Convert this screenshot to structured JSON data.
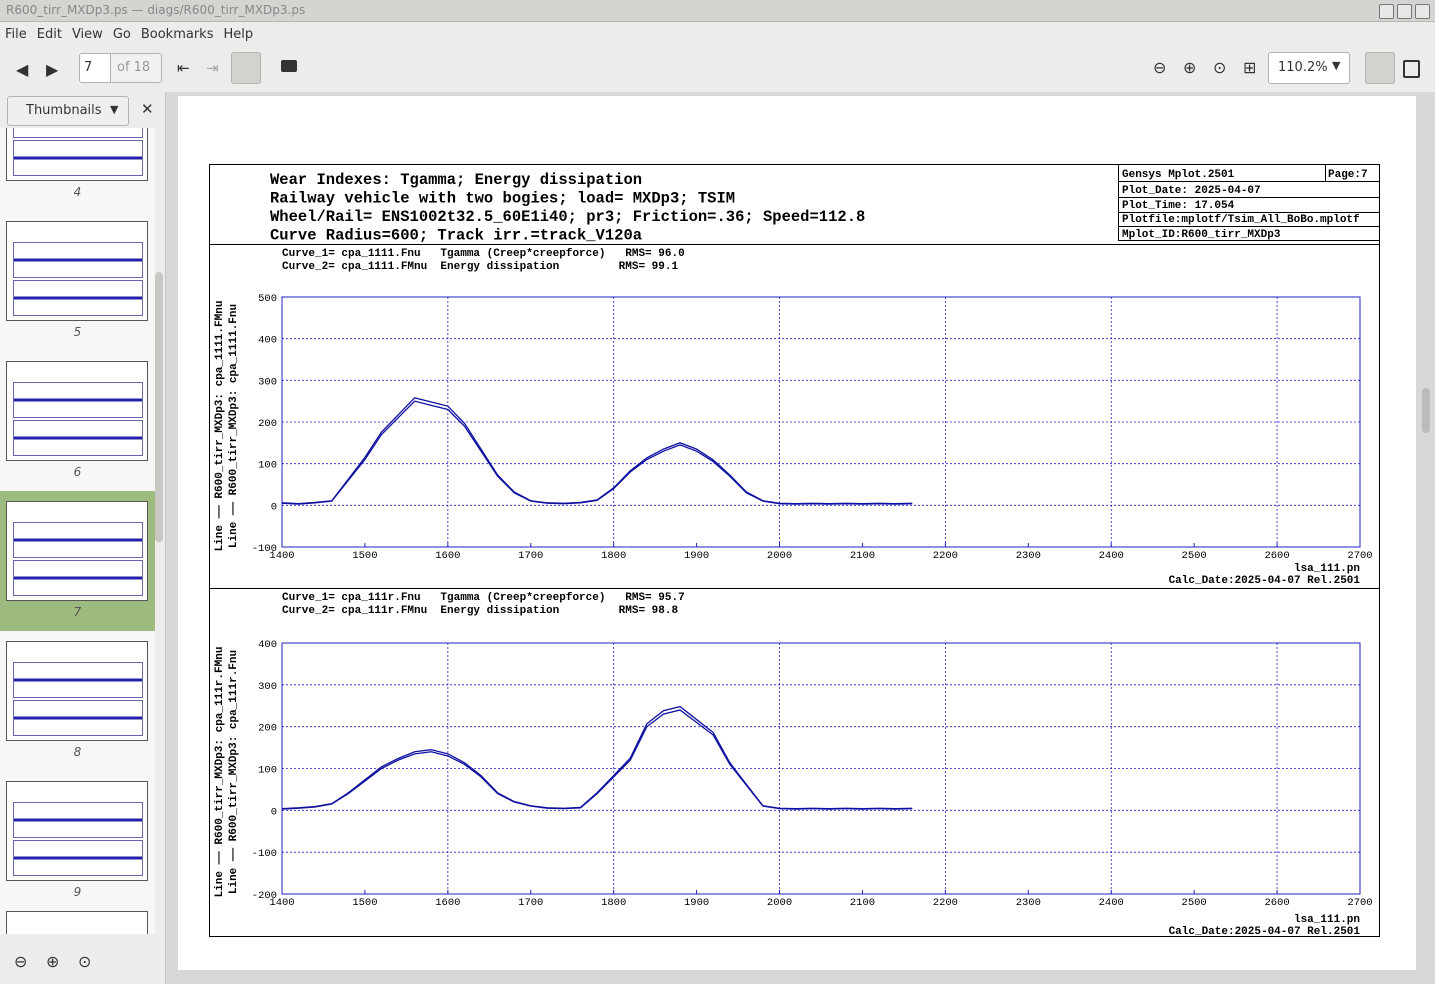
{
  "window": {
    "title": "R600_tirr_MXDp3.ps — diags/R600_tirr_MXDp3.ps"
  },
  "menu": [
    "File",
    "Edit",
    "View",
    "Go",
    "Bookmarks",
    "Help"
  ],
  "toolbar": {
    "page": "7",
    "page_count": "of 18",
    "zoom": "110.2%"
  },
  "sidebar": {
    "mode": "Thumbnails",
    "thumbnails": [
      "4",
      "5",
      "6",
      "7",
      "8",
      "9"
    ],
    "selected": "7"
  },
  "document": {
    "header": [
      "Wear Indexes: Tgamma; Energy dissipation",
      "Railway vehicle with two bogies; load= MXDp3; TSIM",
      "Wheel/Rail= ENS1002t32.5_60E1i40; pr3; Friction=.36; Speed=112.8",
      "Curve Radius=600; Track irr.=track_V120a"
    ],
    "info": [
      "Gensys Mplot.2501",
      "Page:7",
      "Plot_Date: 2025-04-07",
      "Plot_Time: 17.054",
      "Plotfile:mplotf/Tsim_All_BoBo.mplotf",
      "Mplot_ID:R600_tirr_MXDp3"
    ]
  },
  "chart_data": [
    {
      "type": "line",
      "annotations": [
        "Curve_1= cpa_1111.Fnu   Tgamma (Creep*creepforce)   RMS= 96.0",
        "Curve_2= cpa_1111.FMnu  Energy dissipation         RMS= 99.1"
      ],
      "footer": [
        "lsa_111.pn",
        "Calc_Date:2025-04-07 Rel.2501"
      ],
      "x": [
        1400,
        1420,
        1440,
        1460,
        1480,
        1500,
        1520,
        1540,
        1560,
        1580,
        1600,
        1620,
        1640,
        1660,
        1680,
        1700,
        1720,
        1740,
        1760,
        1780,
        1800,
        1820,
        1840,
        1860,
        1880,
        1900,
        1920,
        1940,
        1960,
        1980,
        2000,
        2020,
        2040,
        2060,
        2080,
        2100,
        2120,
        2140,
        2160
      ],
      "series": [
        {
          "name": "Line —— R600_tirr_MXDp3: cpa_1111.Fnu",
          "color": "#1010a0",
          "values": [
            5,
            3,
            6,
            10,
            60,
            110,
            170,
            210,
            250,
            240,
            230,
            190,
            130,
            70,
            30,
            10,
            5,
            4,
            6,
            12,
            40,
            80,
            110,
            130,
            145,
            130,
            105,
            70,
            30,
            10,
            4,
            3,
            4,
            3,
            4,
            3,
            4,
            3,
            4
          ]
        },
        {
          "name": "Line —— R600_tirr_MXDp3: cpa_1111.FMnu",
          "color": "#1010a0",
          "values": [
            6,
            4,
            7,
            11,
            63,
            115,
            176,
            217,
            258,
            248,
            238,
            197,
            135,
            73,
            32,
            11,
            6,
            5,
            7,
            13,
            42,
            83,
            114,
            135,
            150,
            135,
            109,
            73,
            32,
            11,
            5,
            4,
            5,
            4,
            5,
            4,
            5,
            4,
            5
          ]
        }
      ],
      "xlim": [
        1400,
        2700
      ],
      "xticks": [
        1400,
        1500,
        1600,
        1700,
        1800,
        1900,
        2000,
        2100,
        2200,
        2300,
        2400,
        2500,
        2600,
        2700
      ],
      "xgrid": [
        1600,
        1800,
        2000,
        2200,
        2400,
        2600
      ],
      "ylim": [
        -100,
        500
      ],
      "yticks": [
        -100,
        0,
        100,
        200,
        300,
        400,
        500
      ],
      "grid": true,
      "grid_color": "#2020c0"
    },
    {
      "type": "line",
      "annotations": [
        "Curve_1= cpa_111r.Fnu   Tgamma (Creep*creepforce)   RMS= 95.7",
        "Curve_2= cpa_111r.FMnu  Energy dissipation         RMS= 98.8"
      ],
      "footer": [
        "lsa_111.pn",
        "Calc_Date:2025-04-07 Rel.2501"
      ],
      "x": [
        1400,
        1420,
        1440,
        1460,
        1480,
        1500,
        1520,
        1540,
        1560,
        1580,
        1600,
        1620,
        1640,
        1660,
        1680,
        1700,
        1720,
        1740,
        1760,
        1780,
        1800,
        1820,
        1840,
        1860,
        1880,
        1900,
        1920,
        1940,
        1960,
        1980,
        2000,
        2020,
        2040,
        2060,
        2080,
        2100,
        2120,
        2140,
        2160
      ],
      "series": [
        {
          "name": "Line —— R600_tirr_MXDp3: cpa_111r.Fnu",
          "color": "#1010a0",
          "values": [
            3,
            5,
            8,
            15,
            40,
            70,
            100,
            120,
            135,
            140,
            130,
            110,
            80,
            40,
            20,
            10,
            5,
            4,
            6,
            40,
            80,
            120,
            200,
            230,
            240,
            210,
            180,
            110,
            60,
            10,
            4,
            3,
            4,
            3,
            4,
            3,
            4,
            3,
            4
          ]
        },
        {
          "name": "Line —— R600_tirr_MXDp3: cpa_111r.FMnu",
          "color": "#1010a0",
          "values": [
            4,
            6,
            9,
            16,
            42,
            73,
            104,
            124,
            140,
            145,
            135,
            114,
            83,
            42,
            21,
            11,
            6,
            5,
            7,
            42,
            83,
            125,
            207,
            238,
            248,
            217,
            186,
            114,
            62,
            11,
            5,
            4,
            5,
            4,
            5,
            4,
            5,
            4,
            5
          ]
        }
      ],
      "xlim": [
        1400,
        2700
      ],
      "xticks": [
        1400,
        1500,
        1600,
        1700,
        1800,
        1900,
        2000,
        2100,
        2200,
        2300,
        2400,
        2500,
        2600,
        2700
      ],
      "xgrid": [
        1600,
        1800,
        2000,
        2200,
        2400,
        2600
      ],
      "ylim": [
        -200,
        400
      ],
      "yticks": [
        -200,
        -100,
        0,
        100,
        200,
        300,
        400
      ],
      "grid": true,
      "grid_color": "#2020c0"
    }
  ]
}
